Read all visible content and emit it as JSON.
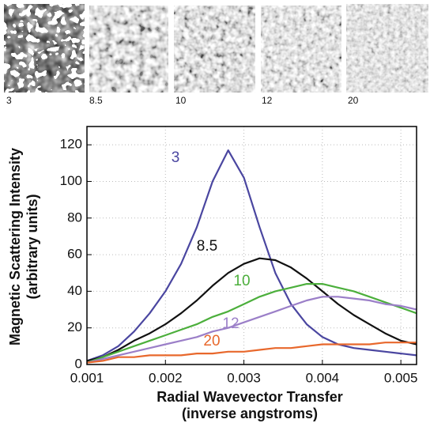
{
  "chart_data": {
    "type": "line",
    "x_label": [
      "Radial Wavevector Transfer",
      "(inverse angstroms)"
    ],
    "y_label": [
      "Magnetic Scattering Intensity",
      "(arbitrary units)"
    ],
    "x": [
      0.001,
      0.0012,
      0.0014,
      0.0016,
      0.0018,
      0.002,
      0.0022,
      0.0024,
      0.0026,
      0.0028,
      0.003,
      0.0032,
      0.0034,
      0.0036,
      0.0038,
      0.004,
      0.0042,
      0.0044,
      0.0046,
      0.0048,
      0.005,
      0.0052
    ],
    "series": [
      {
        "name": "3",
        "color": "#4a46a0",
        "values": [
          2,
          5,
          10,
          18,
          28,
          40,
          55,
          75,
          100,
          117,
          102,
          75,
          50,
          33,
          22,
          15,
          11,
          9,
          8,
          7,
          6,
          5
        ]
      },
      {
        "name": "8.5",
        "color": "#111111",
        "values": [
          2,
          4,
          8,
          13,
          17,
          22,
          28,
          35,
          43,
          50,
          55,
          58,
          57,
          53,
          47,
          40,
          33,
          27,
          22,
          17,
          13,
          11
        ]
      },
      {
        "name": "10",
        "color": "#4caf3c",
        "values": [
          1,
          4,
          7,
          10,
          13,
          16,
          19,
          22,
          26,
          29,
          33,
          37,
          40,
          42,
          44,
          44,
          42,
          40,
          37,
          34,
          31,
          28
        ]
      },
      {
        "name": "12",
        "color": "#9b7fc8",
        "values": [
          1,
          3,
          5,
          7,
          9,
          11,
          13,
          15,
          18,
          20,
          23,
          26,
          29,
          32,
          35,
          37,
          37,
          36,
          35,
          33,
          32,
          30
        ]
      },
      {
        "name": "20",
        "color": "#e8682c",
        "values": [
          1,
          2,
          4,
          4,
          5,
          5,
          5,
          6,
          6,
          7,
          7,
          8,
          9,
          9,
          10,
          11,
          11,
          11,
          11,
          12,
          12,
          12
        ]
      }
    ],
    "xlim": [
      0.001,
      0.0052
    ],
    "xticks": [
      0.001,
      0.002,
      0.003,
      0.004,
      0.005
    ],
    "ylim": [
      0,
      130
    ],
    "yticks": [
      0,
      20,
      40,
      60,
      80,
      100,
      120
    ],
    "grid": true
  }
}
